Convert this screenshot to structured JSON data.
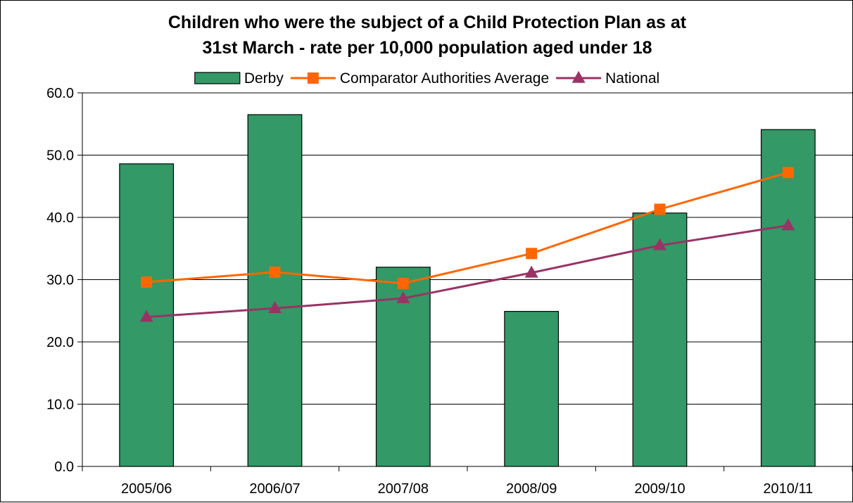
{
  "chart_data": {
    "type": "bar",
    "title_lines": [
      "Children who were the subject of a Child Protection Plan as at",
      "31st March - rate per 10,000 population aged under 18"
    ],
    "categories": [
      "2005/06",
      "2006/07",
      "2007/08",
      "2008/09",
      "2009/10",
      "2010/11"
    ],
    "series": [
      {
        "name": "Derby",
        "kind": "bar",
        "color": "#339966",
        "values": [
          48.6,
          56.5,
          32.0,
          24.9,
          40.7,
          54.1
        ]
      },
      {
        "name": "Comparator Authorities Average",
        "kind": "line",
        "marker": "square",
        "color": "#FF6600",
        "values": [
          29.6,
          31.2,
          29.4,
          34.2,
          41.3,
          47.2
        ]
      },
      {
        "name": "National",
        "kind": "line",
        "marker": "triangle",
        "color": "#993366",
        "values": [
          24.0,
          25.4,
          27.0,
          31.1,
          35.5,
          38.7
        ]
      }
    ],
    "ylim": [
      0,
      60
    ],
    "yticks": [
      "0.0",
      "10.0",
      "20.0",
      "30.0",
      "40.0",
      "50.0",
      "60.0"
    ],
    "xlabel": "",
    "ylabel": "",
    "grid": true,
    "legend": "top"
  }
}
